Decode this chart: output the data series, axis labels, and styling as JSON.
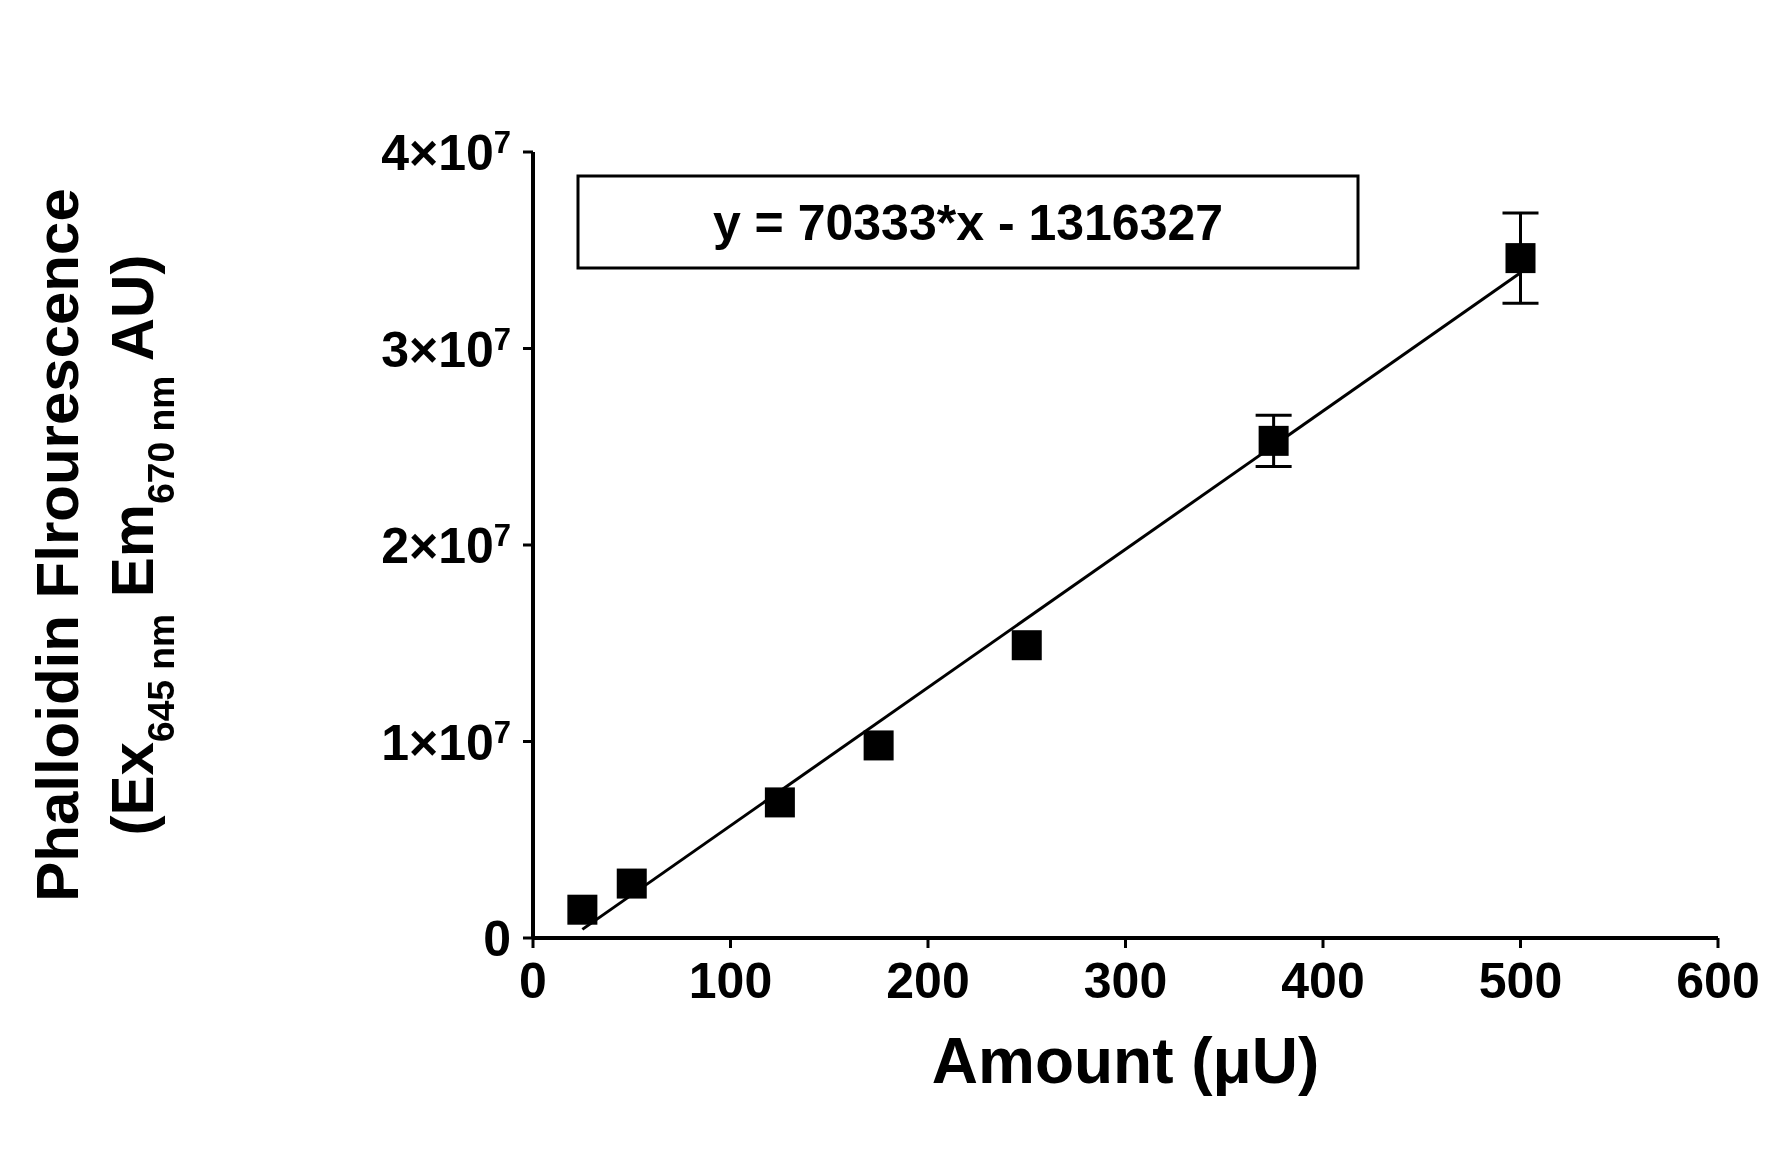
{
  "chart_data": {
    "type": "scatter",
    "xlabel": "Amount (μU)",
    "ylabel": "Phalloidin Flrourescence\n(Ex$_{645 nm}$ Em$_{670 nm}$ AU)",
    "series": [
      {
        "color": "#000000",
        "x": [
          25,
          50,
          125,
          175,
          250,
          375,
          500
        ],
        "values": [
          1440000,
          2770000,
          6900000,
          9800000,
          14900000,
          25300000,
          34600000
        ],
        "errors": [
          null,
          null,
          null,
          null,
          null,
          1300000,
          2300000
        ],
        "marker": "square"
      },
      {
        "type": "line",
        "color": "#000000",
        "x": [
          25,
          500
        ],
        "values": [
          440000,
          33850000
        ],
        "line_style": "solid"
      }
    ],
    "xlim": [
      0,
      600
    ],
    "xticks": [
      0,
      100,
      200,
      300,
      400,
      500,
      600
    ],
    "ylim": [
      0,
      40000000
    ],
    "yticks": [
      0,
      {
        "value": 10000000,
        "label": "1×10$^{7}$"
      },
      {
        "value": 20000000,
        "label": "2×10$^{7}$"
      },
      {
        "value": 30000000,
        "label": "3×10$^{7}$"
      },
      {
        "value": 40000000,
        "label": "4×10$^{7}$"
      }
    ],
    "annotations": [
      "y = 70333*x - 1316327"
    ],
    "grid": false
  }
}
